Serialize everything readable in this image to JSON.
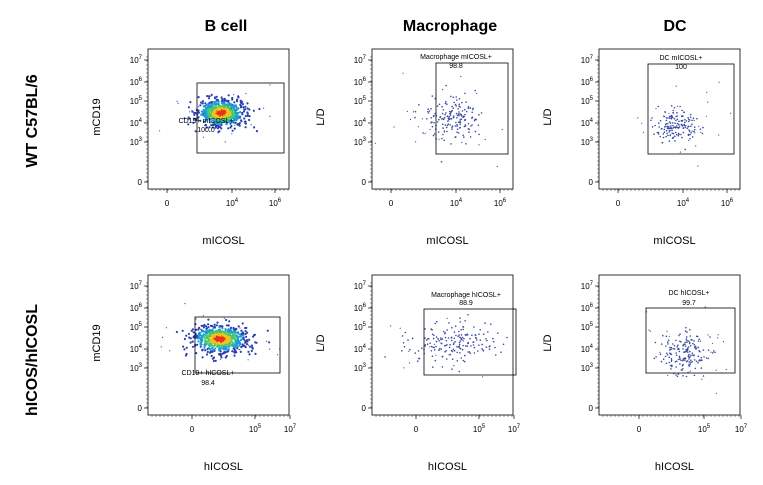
{
  "column_titles": [
    "B cell",
    "Macrophage",
    "DC"
  ],
  "row_titles": [
    "WT C57BL/6",
    "hICOS/hICOSL"
  ],
  "chart_data": [
    {
      "type": "scatter",
      "row": 0,
      "col": 0,
      "xlabel": "mICOSL",
      "ylabel": "mCD19",
      "x_ticks": [
        "0",
        "10^4",
        "10^6"
      ],
      "y_ticks": [
        "0",
        "10^3",
        "10^4",
        "10^5",
        "10^6",
        "10^7"
      ],
      "gate": {
        "label": "CD19+  mICOSL+",
        "value": "100.0"
      },
      "density_plot": true
    },
    {
      "type": "scatter",
      "row": 0,
      "col": 1,
      "xlabel": "mICOSL",
      "ylabel": "L/D",
      "x_ticks": [
        "0",
        "10^4",
        "10^6"
      ],
      "y_ticks": [
        "0",
        "10^3",
        "10^4",
        "10^5",
        "10^6",
        "10^7"
      ],
      "gate": {
        "label": "Macrophage mICOSL+",
        "value": "98.8"
      },
      "density_plot": false
    },
    {
      "type": "scatter",
      "row": 0,
      "col": 2,
      "xlabel": "mICOSL",
      "ylabel": "L/D",
      "x_ticks": [
        "0",
        "10^4",
        "10^6"
      ],
      "y_ticks": [
        "0",
        "10^3",
        "10^4",
        "10^5",
        "10^6",
        "10^7"
      ],
      "gate": {
        "label": "DC mICOSL+",
        "value": "100"
      },
      "density_plot": false
    },
    {
      "type": "scatter",
      "row": 1,
      "col": 0,
      "xlabel": "hICOSL",
      "ylabel": "mCD19",
      "x_ticks": [
        "0",
        "10^5",
        "10^7"
      ],
      "y_ticks": [
        "0",
        "10^3",
        "10^4",
        "10^5",
        "10^6",
        "10^7"
      ],
      "gate": {
        "label": "CD19+ hICOSL+",
        "value": "98.4"
      },
      "density_plot": true
    },
    {
      "type": "scatter",
      "row": 1,
      "col": 1,
      "xlabel": "hICOSL",
      "ylabel": "L/D",
      "x_ticks": [
        "0",
        "10^5",
        "10^7"
      ],
      "y_ticks": [
        "0",
        "10^3",
        "10^4",
        "10^5",
        "10^6",
        "10^7"
      ],
      "gate": {
        "label": "Macrophage hICOSL+",
        "value": "88.9"
      },
      "density_plot": false
    },
    {
      "type": "scatter",
      "row": 1,
      "col": 2,
      "xlabel": "hICOSL",
      "ylabel": "L/D",
      "x_ticks": [
        "0",
        "10^5",
        "10^7"
      ],
      "y_ticks": [
        "0",
        "10^3",
        "10^4",
        "10^5",
        "10^6",
        "10^7"
      ],
      "gate": {
        "label": "DC hICOSL+",
        "value": "99.7"
      },
      "density_plot": false
    }
  ]
}
